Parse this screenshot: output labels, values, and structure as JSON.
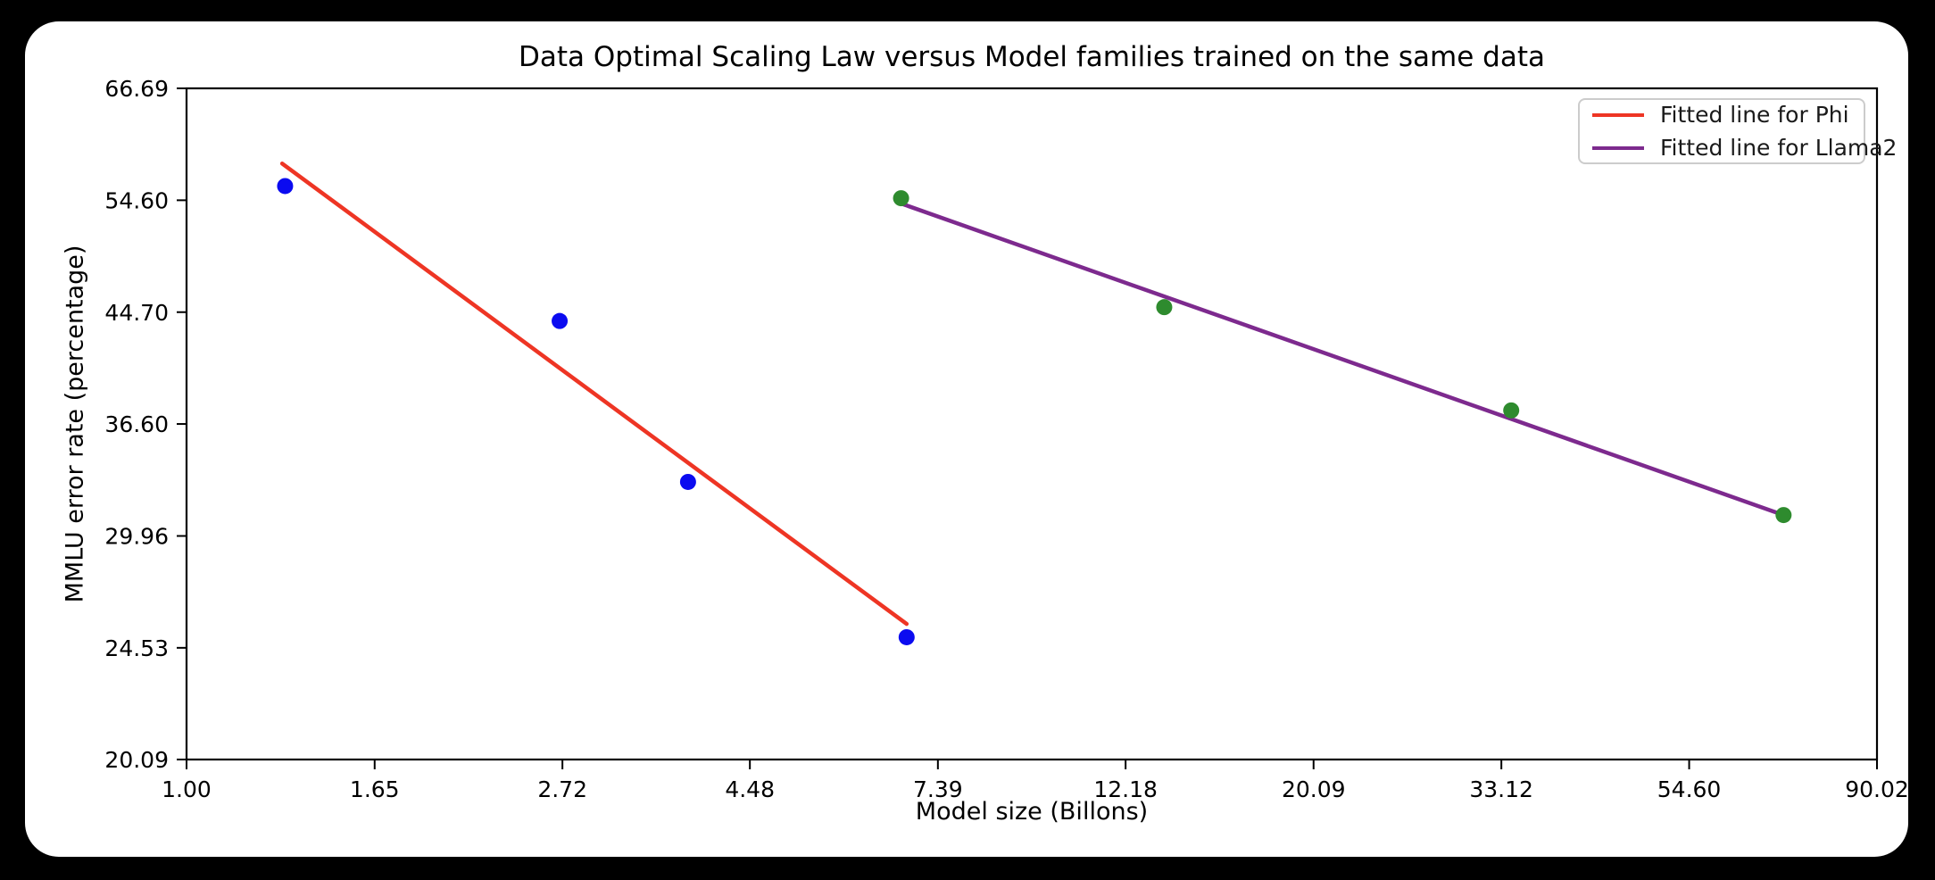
{
  "window": {
    "background_color": "#000000",
    "card_background_color": "#ffffff"
  },
  "chart_data": {
    "type": "scatter",
    "title": "Data Optimal Scaling Law versus Model families trained on the same data",
    "xlabel": "Model size (Billons)",
    "ylabel": "MMLU error rate (percentage)",
    "x_scale": "log",
    "y_scale": "log",
    "x_range": [
      1.0,
      90.02
    ],
    "y_range": [
      20.09,
      66.69
    ],
    "grid": false,
    "x_ticks": [
      {
        "value": 1.0,
        "label": "1.00"
      },
      {
        "value": 1.65,
        "label": "1.65"
      },
      {
        "value": 2.72,
        "label": "2.72"
      },
      {
        "value": 4.48,
        "label": "4.48"
      },
      {
        "value": 7.39,
        "label": "7.39"
      },
      {
        "value": 12.18,
        "label": "12.18"
      },
      {
        "value": 20.09,
        "label": "20.09"
      },
      {
        "value": 33.12,
        "label": "33.12"
      },
      {
        "value": 54.6,
        "label": "54.60"
      },
      {
        "value": 90.02,
        "label": "90.02"
      }
    ],
    "y_ticks": [
      {
        "value": 20.09,
        "label": "20.09"
      },
      {
        "value": 24.53,
        "label": "24.53"
      },
      {
        "value": 29.96,
        "label": "29.96"
      },
      {
        "value": 36.6,
        "label": "36.60"
      },
      {
        "value": 44.7,
        "label": "44.70"
      },
      {
        "value": 54.6,
        "label": "54.60"
      },
      {
        "value": 66.69,
        "label": "66.69"
      }
    ],
    "series": [
      {
        "name": "Phi",
        "type": "scatter",
        "color": "#0b0bf0",
        "marker": "circle",
        "marker_radius": 9,
        "points": [
          [
            1.3,
            56.0
          ],
          [
            2.7,
            44.0
          ],
          [
            3.8,
            33.0
          ],
          [
            6.8,
            25.0
          ]
        ]
      },
      {
        "name": "Llama2",
        "type": "scatter",
        "color": "#2e8b2e",
        "marker": "circle",
        "marker_radius": 9,
        "points": [
          [
            6.7,
            54.8
          ],
          [
            13.5,
            45.1
          ],
          [
            34.0,
            37.5
          ],
          [
            70.2,
            31.1
          ]
        ]
      }
    ],
    "fitted_lines": [
      {
        "name": "phi-fit",
        "legend_label": "Fitted line for Phi",
        "color": "#ee3524",
        "line_width": 4.5,
        "from": [
          1.29,
          58.3
        ],
        "to": [
          6.8,
          25.6
        ]
      },
      {
        "name": "llama2-fit",
        "legend_label": "Fitted line for Llama2",
        "color": "#7d2a8e",
        "line_width": 4.5,
        "from": [
          6.69,
          54.3
        ],
        "to": [
          70.2,
          31.1
        ]
      }
    ],
    "legend": {
      "position": "top-right",
      "entries": [
        "Fitted line for Phi",
        "Fitted line for Llama2"
      ]
    }
  }
}
